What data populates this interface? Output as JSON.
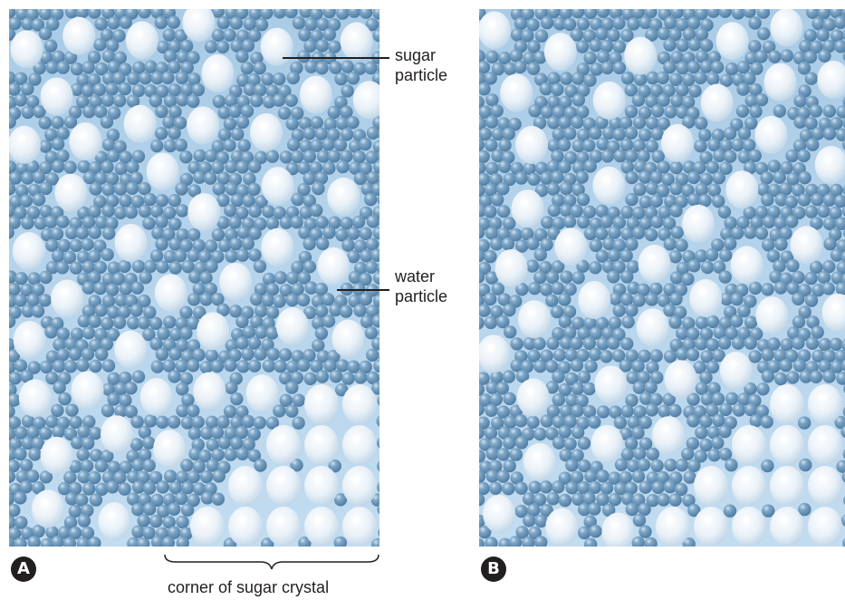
{
  "labels": {
    "sugar_particle": [
      "sugar",
      "particle"
    ],
    "water_particle": [
      "water",
      "particle"
    ],
    "corner_of_sugar_crystal": "corner of sugar crystal",
    "panel_a": "A",
    "panel_b": "B"
  },
  "colors": {
    "background": "#ffffff",
    "solution_fill": "#b3d2ea",
    "water_particle": "#4f7da3",
    "water_highlight": "#cfe3f2",
    "sugar_particle": "#e9f1f8",
    "sugar_highlight": "#ffffff",
    "text": "#231f20"
  }
}
